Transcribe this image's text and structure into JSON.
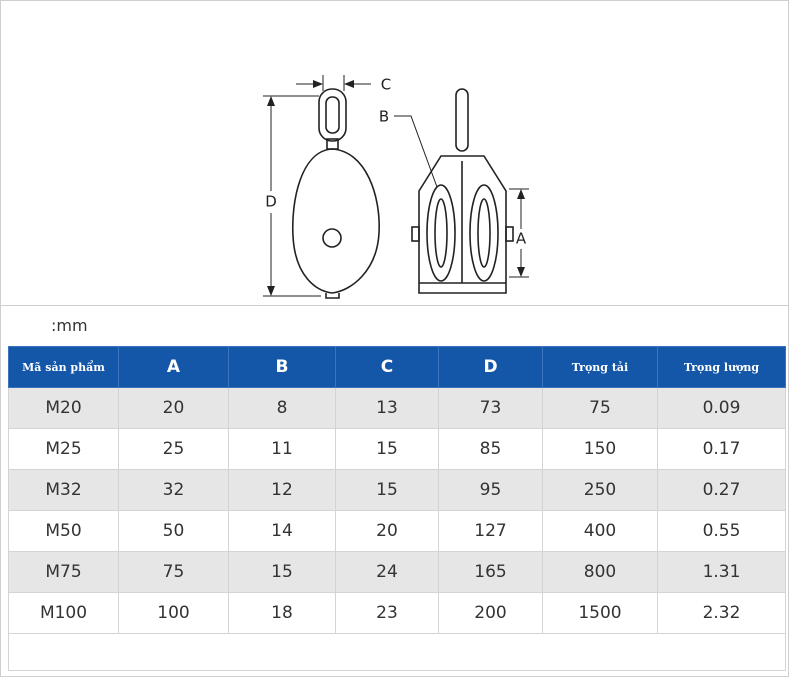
{
  "diagram": {
    "labels": [
      "C",
      "B",
      "D",
      "A"
    ]
  },
  "unit": ":mm",
  "table": {
    "header": [
      "Mã sản phẩm",
      "A",
      "B",
      "C",
      "D",
      "Trọng tải",
      "Trọng lượng"
    ],
    "rows": [
      [
        "M20",
        "20",
        "8",
        "13",
        "73",
        "75",
        "0.09"
      ],
      [
        "M25",
        "25",
        "11",
        "15",
        "85",
        "150",
        "0.17"
      ],
      [
        "M32",
        "32",
        "12",
        "15",
        "95",
        "250",
        "0.27"
      ],
      [
        "M50",
        "50",
        "14",
        "20",
        "127",
        "400",
        "0.55"
      ],
      [
        "M75",
        "75",
        "15",
        "24",
        "165",
        "800",
        "1.31"
      ],
      [
        "M100",
        "100",
        "18",
        "23",
        "200",
        "1500",
        "2.32"
      ]
    ]
  }
}
